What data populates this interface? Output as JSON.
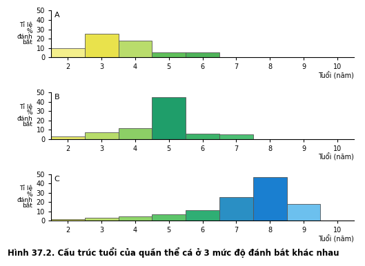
{
  "caption": "Hình 37.2. Cấu trúc tuổi của quần thể cá ở 3 mức độ đánh bắt khác nhau",
  "chart_data": [
    {
      "type": "bar",
      "title": "A",
      "y_label": "Tỉ lệ\n%\nđánh\nbắt",
      "x_label": "Tuổi (năm)",
      "x": [
        2,
        3,
        4,
        5,
        6,
        7,
        8,
        9
      ],
      "values": [
        10,
        25,
        18,
        5,
        5,
        0,
        0,
        0
      ],
      "colors": [
        "#f4ef8c",
        "#e9e24c",
        "#b9dc6c",
        "#5fbf5a",
        "#4fb35a",
        "#4fb35a",
        "#4fb35a",
        "#4fb35a"
      ],
      "xlim": [
        1.5,
        10.5
      ],
      "xticks": [
        2,
        3,
        4,
        5,
        6,
        7,
        8,
        9,
        10
      ],
      "ylim": [
        0,
        50
      ],
      "yticks": [
        0,
        10,
        20,
        30,
        40,
        50
      ],
      "grid": false
    },
    {
      "type": "bar",
      "title": "B",
      "y_label": "Tỉ lệ\n%\nđánh\nbắt",
      "x_label": "Tuổi (năm)",
      "x": [
        2,
        3,
        4,
        5,
        6,
        7,
        8,
        9
      ],
      "values": [
        3,
        7,
        12,
        45,
        6,
        5,
        0,
        0
      ],
      "colors": [
        "#e6e86a",
        "#b7dc6a",
        "#8ccf66",
        "#1f9e6a",
        "#3cb36a",
        "#4cbf74",
        "#4cbf74",
        "#4cbf74"
      ],
      "xlim": [
        1.5,
        10.5
      ],
      "xticks": [
        2,
        3,
        4,
        5,
        6,
        7,
        8,
        9,
        10
      ],
      "ylim": [
        0,
        50
      ],
      "yticks": [
        0,
        10,
        20,
        30,
        40,
        50
      ],
      "grid": false
    },
    {
      "type": "bar",
      "title": "C",
      "y_label": "Tỉ lệ\n%\nđánh\nbắt",
      "x_label": "Tuổi (năm)",
      "x": [
        2,
        3,
        4,
        5,
        6,
        7,
        8,
        9
      ],
      "values": [
        2,
        3,
        5,
        7,
        11,
        25,
        47,
        18
      ],
      "colors": [
        "#e4ea6c",
        "#b9de6c",
        "#8fd46a",
        "#5cc46a",
        "#2fae74",
        "#2a8fc4",
        "#1a7fd0",
        "#6cc0ee"
      ],
      "xlim": [
        1.5,
        10.5
      ],
      "xticks": [
        2,
        3,
        4,
        5,
        6,
        7,
        8,
        9,
        10
      ],
      "ylim": [
        0,
        50
      ],
      "yticks": [
        0,
        10,
        20,
        30,
        40,
        50
      ],
      "grid": false
    }
  ]
}
